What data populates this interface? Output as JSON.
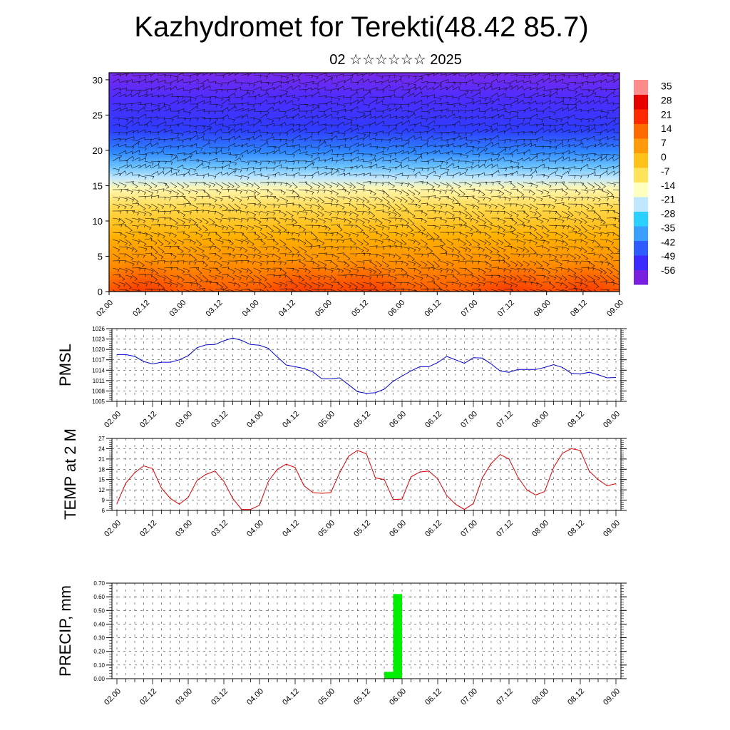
{
  "header": {
    "title": "Kazhydromet for Terekti(48.42 85.7)",
    "subtitle": "02 ☆☆☆☆☆☆ 2025"
  },
  "chart_data": [
    {
      "type": "heatmap",
      "name": "vertical-cross-section",
      "description_kind": "temperature field with wind barbs",
      "x_labels": [
        "02.00",
        "02.12",
        "03.00",
        "03.12",
        "04.00",
        "04.12",
        "05.00",
        "05.12",
        "06.00",
        "06.12",
        "07.00",
        "07.12",
        "08.00",
        "08.12",
        "09.00"
      ],
      "y_ticks": [
        "0",
        "5",
        "10",
        "15",
        "20",
        "25",
        "30"
      ],
      "ylim": [
        0,
        31
      ],
      "colorbar_labels": [
        "35",
        "28",
        "21",
        "14",
        "7",
        "0",
        "-7",
        "-14",
        "-21",
        "-28",
        "-35",
        "-42",
        "-49",
        "-56"
      ],
      "colorbar_range": [
        -63,
        38
      ],
      "colorscale": [
        "#7a1ee0",
        "#3b2bff",
        "#2f5cff",
        "#3aa0ff",
        "#2ad0ff",
        "#bfe8ff",
        "#ffffc0",
        "#ffe35a",
        "#ffc21a",
        "#ff9a0a",
        "#ff6a00",
        "#ff2a00",
        "#e60000",
        "#ff8c8c"
      ]
    },
    {
      "type": "line",
      "name": "pmsl",
      "ylabel": "PMSL",
      "x_labels": [
        "02.00",
        "02.12",
        "03.00",
        "03.12",
        "04.00",
        "04.12",
        "05.00",
        "05.12",
        "06.00",
        "06.12",
        "07.00",
        "07.12",
        "08.00",
        "08.12",
        "09.00"
      ],
      "y_ticks": [
        "1005",
        "1008",
        "1011",
        "1014",
        "1017",
        "1020",
        "1023",
        "1026"
      ],
      "ylim": [
        1005,
        1026
      ],
      "color": "#0000cc",
      "x": [
        0,
        1,
        2,
        3,
        4,
        5,
        6,
        7,
        8,
        9,
        10,
        11,
        12,
        13,
        14,
        15,
        16,
        17,
        18,
        19,
        20,
        21,
        22,
        23,
        24,
        25,
        26,
        27,
        28,
        29,
        30,
        31,
        32,
        33,
        34,
        35,
        36,
        37,
        38,
        39,
        40,
        41,
        42,
        43,
        44,
        45,
        46,
        47,
        48,
        49,
        50,
        51,
        52,
        53,
        54,
        55,
        56
      ],
      "values": [
        1018.5,
        1018.5,
        1018,
        1016.5,
        1015.8,
        1016.3,
        1016.3,
        1017,
        1018.2,
        1020.5,
        1021.3,
        1021.4,
        1022.5,
        1023.3,
        1022.6,
        1021.4,
        1021.2,
        1020.3,
        1017.8,
        1015.5,
        1015,
        1014.5,
        1013.5,
        1011.5,
        1011.5,
        1011.8,
        1009.8,
        1007.8,
        1007.3,
        1007.5,
        1008.5,
        1010.8,
        1012.3,
        1013.8,
        1015,
        1015,
        1016.2,
        1018,
        1017,
        1016,
        1017.6,
        1017.5,
        1015.8,
        1013.8,
        1013.4,
        1014.2,
        1014.2,
        1014.2,
        1014.8,
        1015.6,
        1014.8,
        1013.1,
        1012.9,
        1013.4,
        1012.7,
        1011.8,
        1011.9
      ]
    },
    {
      "type": "line",
      "name": "temp-2m",
      "ylabel": "TEMP at 2 M",
      "x_labels": [
        "02.00",
        "02.12",
        "03.00",
        "03.12",
        "04.00",
        "04.12",
        "05.00",
        "05.12",
        "06.00",
        "06.12",
        "07.00",
        "07.12",
        "08.00",
        "08.12",
        "09.00"
      ],
      "y_ticks": [
        "6",
        "9",
        "12",
        "15",
        "18",
        "21",
        "24",
        "27"
      ],
      "ylim": [
        6,
        27
      ],
      "color": "#dd0000",
      "x": [
        0,
        1,
        2,
        3,
        4,
        5,
        6,
        7,
        8,
        9,
        10,
        11,
        12,
        13,
        14,
        15,
        16,
        17,
        18,
        19,
        20,
        21,
        22,
        23,
        24,
        25,
        26,
        27,
        28,
        29,
        30,
        31,
        32,
        33,
        34,
        35,
        36,
        37,
        38,
        39,
        40,
        41,
        42,
        43,
        44,
        45,
        46,
        47,
        48,
        49,
        50,
        51,
        52,
        53,
        54,
        55,
        56
      ],
      "values": [
        8,
        14,
        17,
        19,
        18.2,
        12.5,
        9.5,
        7.8,
        9.8,
        14.8,
        16.5,
        17.5,
        14.5,
        9.5,
        6.3,
        6.3,
        7.5,
        14.5,
        18,
        19.5,
        18.5,
        13.2,
        11.2,
        11,
        11.2,
        17,
        21.8,
        23.5,
        22.5,
        15.5,
        15,
        9.2,
        9.3,
        15.8,
        17.2,
        17.5,
        15.2,
        10.4,
        7.8,
        6.3,
        8,
        15.5,
        19.7,
        22.3,
        21,
        15.7,
        12,
        10.5,
        11.5,
        18.5,
        22.7,
        24,
        23.5,
        17.5,
        15,
        13.2,
        13.8
      ]
    },
    {
      "type": "bar",
      "name": "precip",
      "ylabel": "PRECIP, mm",
      "x_labels": [
        "02.00",
        "02.12",
        "03.00",
        "03.12",
        "04.00",
        "04.12",
        "05.00",
        "05.12",
        "06.00",
        "06.12",
        "07.00",
        "07.12",
        "08.00",
        "08.12",
        "09.00"
      ],
      "y_ticks": [
        "0.00",
        "0.10",
        "0.20",
        "0.30",
        "0.40",
        "0.50",
        "0.60",
        "0.70"
      ],
      "ylim": [
        0,
        0.7
      ],
      "color": "#00ee00",
      "bars": [
        {
          "x": 30.5,
          "value": 0.05
        },
        {
          "x": 31.5,
          "value": 0.62
        }
      ]
    }
  ]
}
